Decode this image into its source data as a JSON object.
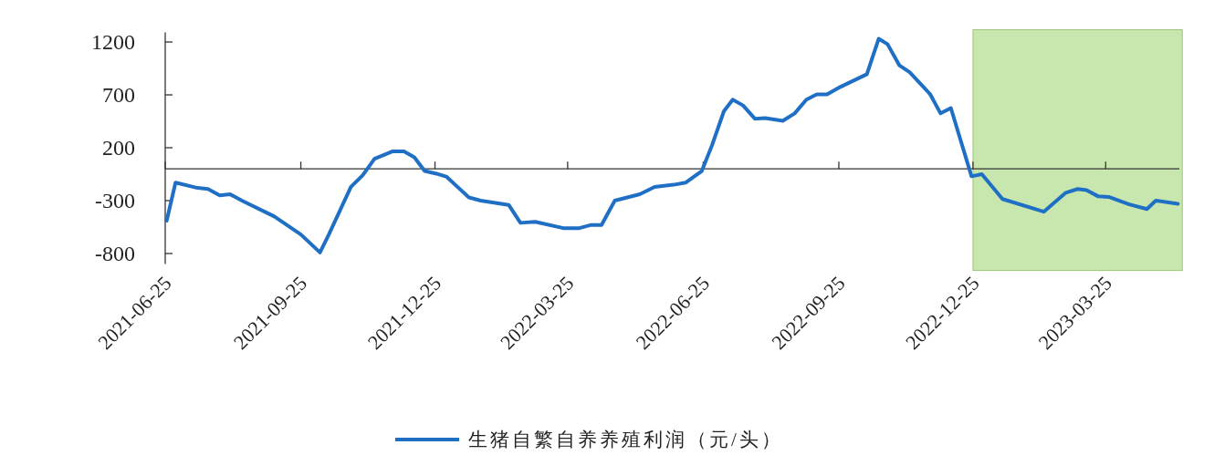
{
  "chart_data": {
    "type": "line",
    "x": [
      "2021-06-26",
      "2021-07-02",
      "2021-07-17",
      "2021-07-24",
      "2021-08-01",
      "2021-08-08",
      "2021-08-16",
      "2021-09-07",
      "2021-09-25",
      "2021-10-08",
      "2021-10-14",
      "2021-10-29",
      "2021-11-06",
      "2021-11-14",
      "2021-11-26",
      "2021-12-04",
      "2021-12-11",
      "2021-12-18",
      "2021-12-26",
      "2022-01-02",
      "2022-01-17",
      "2022-01-25",
      "2022-02-13",
      "2022-02-21",
      "2022-03-03",
      "2022-03-22",
      "2022-04-02",
      "2022-04-10",
      "2022-04-17",
      "2022-04-26",
      "2022-05-13",
      "2022-05-23",
      "2022-06-05",
      "2022-06-13",
      "2022-06-24",
      "2022-07-01",
      "2022-07-09",
      "2022-07-15",
      "2022-07-22",
      "2022-07-30",
      "2022-08-06",
      "2022-08-18",
      "2022-08-26",
      "2022-09-03",
      "2022-09-10",
      "2022-09-17",
      "2022-09-26",
      "2022-10-14",
      "2022-10-22",
      "2022-10-28",
      "2022-11-05",
      "2022-11-12",
      "2022-11-26",
      "2022-12-03",
      "2022-12-10",
      "2022-12-24",
      "2022-12-31",
      "2023-01-14",
      "2023-02-11",
      "2023-02-26",
      "2023-03-06",
      "2023-03-12",
      "2023-03-20",
      "2023-03-27",
      "2023-04-10",
      "2023-04-22",
      "2023-04-28",
      "2023-05-13"
    ],
    "series": [
      {
        "name": "生猪自繁自养养殖利润（元/头）",
        "color": "#1f6fc5",
        "values": [
          -490,
          -130,
          -180,
          -190,
          -250,
          -240,
          -300,
          -450,
          -620,
          -790,
          -620,
          -170,
          -60,
          95,
          165,
          165,
          110,
          -20,
          -45,
          -75,
          -270,
          -300,
          -340,
          -510,
          -500,
          -560,
          -560,
          -530,
          -530,
          -300,
          -240,
          -170,
          -150,
          -130,
          -20,
          225,
          545,
          655,
          600,
          475,
          480,
          455,
          525,
          655,
          705,
          705,
          775,
          895,
          1230,
          1180,
          980,
          915,
          705,
          525,
          575,
          -70,
          -50,
          -285,
          -405,
          -225,
          -190,
          -200,
          -260,
          -265,
          -335,
          -380,
          -300,
          -330
        ]
      }
    ],
    "xlim": [
      "2021-06-25",
      "2023-05-14"
    ],
    "xticks": [
      "2021-06-25",
      "2021-09-25",
      "2021-12-25",
      "2022-03-25",
      "2022-06-25",
      "2022-09-25",
      "2022-12-25",
      "2023-03-25"
    ],
    "ylim": [
      -900,
      1290
    ],
    "yticks": [
      1200,
      700,
      200,
      -300,
      -800
    ],
    "bands": [
      {
        "axis": "x",
        "from": "2022-12-25",
        "to": "2023-05-16",
        "color": "#a6d87c"
      }
    ],
    "legend": "bottom",
    "grid": false,
    "marker": "none",
    "line_style": "solid"
  }
}
